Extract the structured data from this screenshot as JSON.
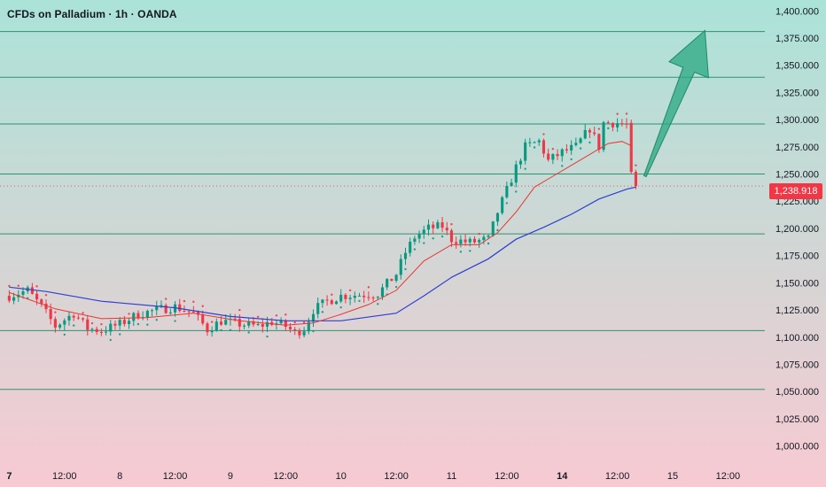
{
  "chart_data": {
    "type": "candlestick",
    "title": "CFDs on Palladium · 1h · OANDA",
    "ylim": [
      985000,
      1410000
    ],
    "y_ticks": [
      1000000,
      1025000,
      1050000,
      1075000,
      1100000,
      1125000,
      1150000,
      1175000,
      1200000,
      1225000,
      1250000,
      1275000,
      1300000,
      1325000,
      1350000,
      1375000,
      1400000
    ],
    "y_tick_labels": [
      "1,000.000",
      "1,025.000",
      "1,050.000",
      "1,075.000",
      "1,100.000",
      "1,125.000",
      "1,150.000",
      "1,175.000",
      "1,200.000",
      "1,225.000",
      "1,250.000",
      "1,275.000",
      "1,300.000",
      "1,325.000",
      "1,350.000",
      "1,375.000",
      "1,400.000"
    ],
    "x_ticks": [
      {
        "label": "7",
        "t": 0,
        "bold": true
      },
      {
        "label": "12:00",
        "t": 12
      },
      {
        "label": "8",
        "t": 24
      },
      {
        "label": "12:00",
        "t": 36
      },
      {
        "label": "9",
        "t": 48
      },
      {
        "label": "12:00",
        "t": 60
      },
      {
        "label": "10",
        "t": 72
      },
      {
        "label": "12:00",
        "t": 84
      },
      {
        "label": "11",
        "t": 96
      },
      {
        "label": "12:00",
        "t": 108
      },
      {
        "label": "14",
        "t": 120,
        "bold": true
      },
      {
        "label": "12:00",
        "t": 132
      },
      {
        "label": "15",
        "t": 144
      },
      {
        "label": "12:00",
        "t": 156
      }
    ],
    "t_range": [
      -2,
      164
    ],
    "last_price": 1238918,
    "last_price_label": "1,238.918",
    "horizontal_levels": [
      1381000,
      1339000,
      1296000,
      1250000,
      1195000,
      1106000,
      1052000
    ],
    "anchors": [
      {
        "t": 0,
        "p": 1138000
      },
      {
        "t": 4,
        "p": 1143000
      },
      {
        "t": 7,
        "p": 1128000
      },
      {
        "t": 10,
        "p": 1110000
      },
      {
        "t": 14,
        "p": 1122000
      },
      {
        "t": 17,
        "p": 1108000
      },
      {
        "t": 20,
        "p": 1106000
      },
      {
        "t": 24,
        "p": 1112000
      },
      {
        "t": 28,
        "p": 1121000
      },
      {
        "t": 32,
        "p": 1125000
      },
      {
        "t": 36,
        "p": 1128000
      },
      {
        "t": 40,
        "p": 1122000
      },
      {
        "t": 43,
        "p": 1107000
      },
      {
        "t": 46,
        "p": 1115000
      },
      {
        "t": 50,
        "p": 1112000
      },
      {
        "t": 54,
        "p": 1110000
      },
      {
        "t": 57,
        "p": 1114000
      },
      {
        "t": 60,
        "p": 1110000
      },
      {
        "t": 62,
        "p": 1104000
      },
      {
        "t": 64,
        "p": 1108000
      },
      {
        "t": 66,
        "p": 1125000
      },
      {
        "t": 69,
        "p": 1133000
      },
      {
        "t": 72,
        "p": 1138000
      },
      {
        "t": 76,
        "p": 1139000
      },
      {
        "t": 80,
        "p": 1140000
      },
      {
        "t": 84,
        "p": 1158000
      },
      {
        "t": 86,
        "p": 1178000
      },
      {
        "t": 88,
        "p": 1192000
      },
      {
        "t": 91,
        "p": 1200000
      },
      {
        "t": 94,
        "p": 1202000
      },
      {
        "t": 96,
        "p": 1190000
      },
      {
        "t": 100,
        "p": 1187000
      },
      {
        "t": 104,
        "p": 1190000
      },
      {
        "t": 106,
        "p": 1215000
      },
      {
        "t": 108,
        "p": 1235000
      },
      {
        "t": 110,
        "p": 1256000
      },
      {
        "t": 112,
        "p": 1275000
      },
      {
        "t": 115,
        "p": 1280000
      },
      {
        "t": 117,
        "p": 1262000
      },
      {
        "t": 120,
        "p": 1270000
      },
      {
        "t": 123,
        "p": 1275000
      },
      {
        "t": 126,
        "p": 1292000
      },
      {
        "t": 128,
        "p": 1275000
      },
      {
        "t": 129,
        "p": 1297000
      },
      {
        "t": 132,
        "p": 1297000
      },
      {
        "t": 134,
        "p": 1295000
      },
      {
        "t": 135,
        "p": 1250000
      },
      {
        "t": 136,
        "p": 1238918
      }
    ],
    "ma_fast": [
      {
        "t": 0,
        "p": 1141000
      },
      {
        "t": 10,
        "p": 1126000
      },
      {
        "t": 20,
        "p": 1117000
      },
      {
        "t": 30,
        "p": 1118000
      },
      {
        "t": 40,
        "p": 1122000
      },
      {
        "t": 50,
        "p": 1115000
      },
      {
        "t": 60,
        "p": 1111000
      },
      {
        "t": 66,
        "p": 1113000
      },
      {
        "t": 72,
        "p": 1121000
      },
      {
        "t": 78,
        "p": 1130000
      },
      {
        "t": 84,
        "p": 1143000
      },
      {
        "t": 90,
        "p": 1170000
      },
      {
        "t": 96,
        "p": 1185000
      },
      {
        "t": 102,
        "p": 1185000
      },
      {
        "t": 106,
        "p": 1196000
      },
      {
        "t": 110,
        "p": 1215000
      },
      {
        "t": 114,
        "p": 1238000
      },
      {
        "t": 118,
        "p": 1248000
      },
      {
        "t": 122,
        "p": 1258000
      },
      {
        "t": 126,
        "p": 1268000
      },
      {
        "t": 130,
        "p": 1278000
      },
      {
        "t": 133,
        "p": 1280000
      },
      {
        "t": 135,
        "p": 1276000
      }
    ],
    "ma_slow": [
      {
        "t": 0,
        "p": 1146000
      },
      {
        "t": 8,
        "p": 1142000
      },
      {
        "t": 20,
        "p": 1133000
      },
      {
        "t": 36,
        "p": 1127000
      },
      {
        "t": 48,
        "p": 1119000
      },
      {
        "t": 60,
        "p": 1115000
      },
      {
        "t": 72,
        "p": 1115000
      },
      {
        "t": 84,
        "p": 1122000
      },
      {
        "t": 90,
        "p": 1138000
      },
      {
        "t": 96,
        "p": 1155000
      },
      {
        "t": 104,
        "p": 1172000
      },
      {
        "t": 110,
        "p": 1190000
      },
      {
        "t": 116,
        "p": 1201000
      },
      {
        "t": 122,
        "p": 1213000
      },
      {
        "t": 128,
        "p": 1227000
      },
      {
        "t": 134,
        "p": 1236000
      },
      {
        "t": 136,
        "p": 1238000
      }
    ],
    "arrow": {
      "from": {
        "t": 138,
        "p": 1248000
      },
      "to": {
        "t": 151,
        "p": 1382000
      }
    },
    "colors": {
      "up": "#089981",
      "down": "#f23645",
      "ma_fast": "#e53935",
      "ma_slow": "#2f3fd1",
      "level": "#1e8a66",
      "arrow": "#2aa882",
      "bg_top": "#abe3d8",
      "bg_bottom": "#f7cad2",
      "axis_text": "#131722",
      "last_price": "#f23645"
    }
  }
}
